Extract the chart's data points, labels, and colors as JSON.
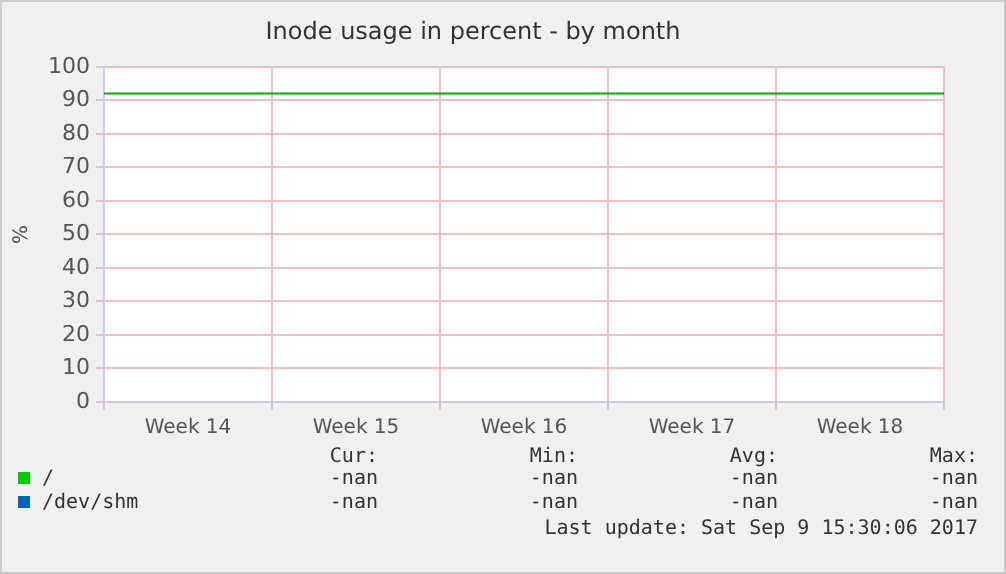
{
  "chart_data": {
    "type": "line",
    "title": "Inode usage in percent - by month",
    "ylabel": "%",
    "categories": [
      "Week 14",
      "Week 15",
      "Week 16",
      "Week 17",
      "Week 18"
    ],
    "series": [
      {
        "name": "/",
        "color": "#00cc00",
        "values": [
          null,
          null,
          null,
          null,
          null
        ]
      },
      {
        "name": "/dev/shm",
        "color": "#0066b3",
        "values": [
          null,
          null,
          null,
          null,
          null
        ]
      }
    ],
    "ylim": [
      0,
      100
    ],
    "yticks": [
      0,
      10,
      20,
      30,
      40,
      50,
      60,
      70,
      80,
      90,
      100
    ],
    "ref_lines": [
      {
        "axis": "y",
        "value": 92,
        "color": "#00aa00"
      }
    ],
    "grid": true,
    "legend": "bottom",
    "annotations": [
      "Cur:",
      "Min:",
      "Avg:",
      "Max:",
      "-nan",
      "-nan",
      "-nan",
      "-nan",
      "-nan",
      "-nan",
      "-nan",
      "-nan",
      "Last update: Sat Sep  9 15:30:06 2017"
    ]
  }
}
